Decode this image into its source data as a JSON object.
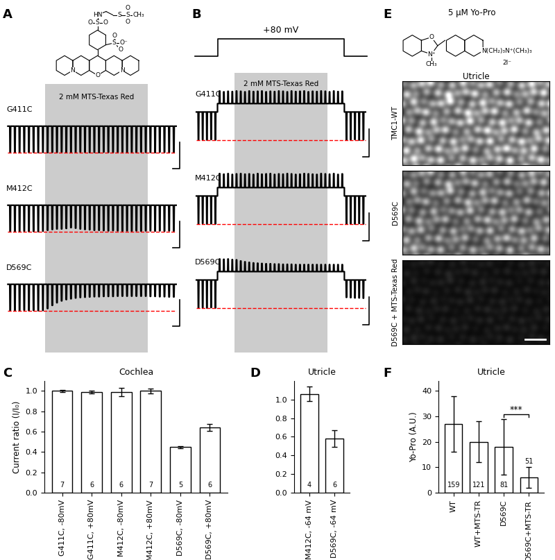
{
  "trace_panels": [
    {
      "label": "A",
      "structure_atoms": [
        "O",
        "N",
        "N",
        "S",
        "O",
        "O⁻",
        "O",
        "S",
        "O",
        "O",
        "HN",
        "S",
        "S",
        "O",
        "O",
        "CH₃"
      ],
      "reagent": "2 mM MTS-Texas Red",
      "gray": [
        8,
        30
      ],
      "traces": [
        {
          "name": "G411C",
          "pulses": [
            -1.0,
            -0.99,
            -1.0,
            -0.98,
            -1.0,
            -0.99,
            -1.0,
            -0.99,
            -1.0,
            -0.99,
            -1.0,
            -0.98,
            -1.0,
            -0.99,
            -1.0,
            -0.98,
            -0.99,
            -1.0,
            -0.99,
            -1.0,
            -0.98,
            -0.99,
            -1.0,
            -0.99,
            -0.98,
            -1.0,
            -0.99,
            -1.0,
            -0.98,
            -0.99,
            -0.99,
            -1.0,
            -0.98,
            -0.99,
            -1.0,
            -0.99
          ]
        },
        {
          "name": "M412C",
          "pulses": [
            -1.0,
            -0.99,
            -1.0,
            -0.98,
            -1.0,
            -0.99,
            -1.0,
            -0.98,
            -0.95,
            -0.92,
            -0.9,
            -0.9,
            -0.88,
            -0.85,
            -0.87,
            -0.9,
            -0.92,
            -0.93,
            -0.95,
            -0.95,
            -0.96,
            -0.97,
            -0.96,
            -0.97,
            -0.98,
            -0.97,
            -0.98,
            -0.97,
            -0.98,
            -0.97,
            -0.97,
            -0.98,
            -0.97,
            -0.98,
            -0.97,
            -0.98
          ]
        },
        {
          "name": "D569C",
          "pulses": [
            -1.0,
            -0.99,
            -1.0,
            -0.98,
            -1.0,
            -0.99,
            -1.0,
            -0.99,
            -0.92,
            -0.8,
            -0.7,
            -0.63,
            -0.58,
            -0.55,
            -0.52,
            -0.5,
            -0.49,
            -0.48,
            -0.47,
            -0.47,
            -0.46,
            -0.46,
            -0.46,
            -0.45,
            -0.45,
            -0.45,
            -0.45,
            -0.45,
            -0.45,
            -0.45,
            -0.46,
            -0.46,
            -0.47,
            -0.47,
            -0.48,
            -0.48
          ]
        }
      ]
    },
    {
      "label": "B",
      "protocol": "+80 mV",
      "reagent": "2 mM MTS-Texas Red",
      "step": [
        5,
        35
      ],
      "holding_shift": 0.3,
      "gray": [
        9,
        31
      ],
      "traces": [
        {
          "name": "G411C",
          "pulses": [
            -1.0,
            -0.99,
            -1.0,
            -0.98,
            -1.0,
            0.45,
            0.42,
            0.44,
            0.43,
            0.45,
            0.44,
            0.42,
            0.45,
            0.43,
            0.44,
            0.45,
            0.42,
            0.44,
            0.43,
            0.45,
            0.44,
            0.42,
            0.45,
            0.43,
            0.44,
            0.45,
            0.42,
            0.44,
            0.43,
            0.45,
            0.44,
            0.42,
            0.45,
            0.43,
            0.44,
            -1.0,
            -0.99,
            -0.98,
            -1.0,
            -0.99
          ]
        },
        {
          "name": "M412C",
          "pulses": [
            -1.0,
            -0.98,
            -1.0,
            -0.99,
            -1.0,
            0.5,
            0.48,
            0.5,
            0.47,
            0.49,
            0.5,
            0.48,
            0.49,
            0.47,
            0.5,
            0.48,
            0.49,
            0.5,
            0.47,
            0.49,
            0.48,
            0.5,
            0.49,
            0.47,
            0.48,
            0.5,
            0.49,
            0.48,
            0.47,
            0.5,
            0.49,
            0.48,
            0.5,
            0.47,
            0.49,
            -1.0,
            -0.99,
            -1.0,
            -0.98,
            -1.0
          ]
        },
        {
          "name": "D569C",
          "pulses": [
            -1.0,
            -0.99,
            -1.0,
            -0.98,
            -1.0,
            0.45,
            0.44,
            0.45,
            0.43,
            0.42,
            0.38,
            0.35,
            0.33,
            0.31,
            0.3,
            0.29,
            0.28,
            0.28,
            0.27,
            0.27,
            0.26,
            0.26,
            0.26,
            0.25,
            0.25,
            0.25,
            0.25,
            0.25,
            0.25,
            0.25,
            0.25,
            0.25,
            0.25,
            0.25,
            0.25,
            -0.62,
            -0.63,
            -0.64,
            -0.64,
            -0.65
          ]
        }
      ]
    }
  ],
  "image_panel": {
    "label": "E",
    "stain": "5 μM Yo-Pro",
    "title": "Utricle",
    "structure_atoms": [
      "O",
      "N⁺",
      "CH₃",
      "N(CH₂)₃N⁺(CH₃)₃",
      "2I⁻"
    ],
    "images": [
      {
        "name": "TMC1-WT",
        "intensity": 0.8
      },
      {
        "name": "D569C",
        "intensity": 0.65
      },
      {
        "name": "D569C + MTS-Texas Red",
        "intensity": 0.12
      }
    ]
  },
  "chart_data": [
    {
      "panel": "C",
      "type": "bar",
      "title": "Cochlea",
      "y_label": "Current ratio (I/I₀)",
      "categories": [
        "G411C, -80mV",
        "G411C, +80mV",
        "M412C, -80mV",
        "M412C, +80mV",
        "D569C, -80mV",
        "D569C, +80mV"
      ],
      "values": [
        1.0,
        0.99,
        0.99,
        1.0,
        0.45,
        0.64
      ],
      "errors": [
        0.01,
        0.015,
        0.04,
        0.025,
        0.01,
        0.035
      ],
      "n": [
        7,
        6,
        6,
        7,
        5,
        6
      ],
      "color": "#ffffff",
      "ylim": [
        0,
        1.1
      ],
      "yticks": [
        {
          "value": 0,
          "label": "0.0"
        },
        {
          "value": 0.2,
          "label": "0.2"
        },
        {
          "value": 0.4,
          "label": "0.4"
        },
        {
          "value": 0.6,
          "label": "0.6"
        },
        {
          "value": 0.8,
          "label": "0.8"
        },
        {
          "value": 1.0,
          "label": "1.0"
        }
      ]
    },
    {
      "panel": "D",
      "type": "bar",
      "title": "Utricle",
      "categories": [
        "M412C, -64 mV",
        "D569C, -64 mV"
      ],
      "values": [
        1.06,
        0.58
      ],
      "errors": [
        0.08,
        0.09
      ],
      "n": [
        4,
        6
      ],
      "color": "#ffffff",
      "ylim": [
        0,
        1.2
      ],
      "yticks": [
        {
          "value": 0,
          "label": "0.0"
        },
        {
          "value": 0.2,
          "label": "0.2"
        },
        {
          "value": 0.4,
          "label": "0.4"
        },
        {
          "value": 0.6,
          "label": "0.6"
        },
        {
          "value": 0.8,
          "label": "0.8"
        },
        {
          "value": 1.0,
          "label": "1.0"
        }
      ]
    },
    {
      "panel": "F",
      "type": "bar",
      "title": "Utricle",
      "y_label": "Yo-Pro (A.U.)",
      "categories": [
        "WT",
        "WT+MTS-TR",
        "D569C",
        "D569C+MTS-TR"
      ],
      "values": [
        27,
        20,
        18,
        6
      ],
      "errors": [
        11,
        8,
        11,
        4
      ],
      "n": [
        159,
        121,
        81,
        51
      ],
      "color": "#ffffff",
      "ylim": [
        0,
        44
      ],
      "yticks": [
        0,
        10,
        20,
        30,
        40
      ],
      "significance": {
        "between": [
          "D569C",
          "D569C+MTS-TR"
        ],
        "label": "***"
      }
    }
  ]
}
